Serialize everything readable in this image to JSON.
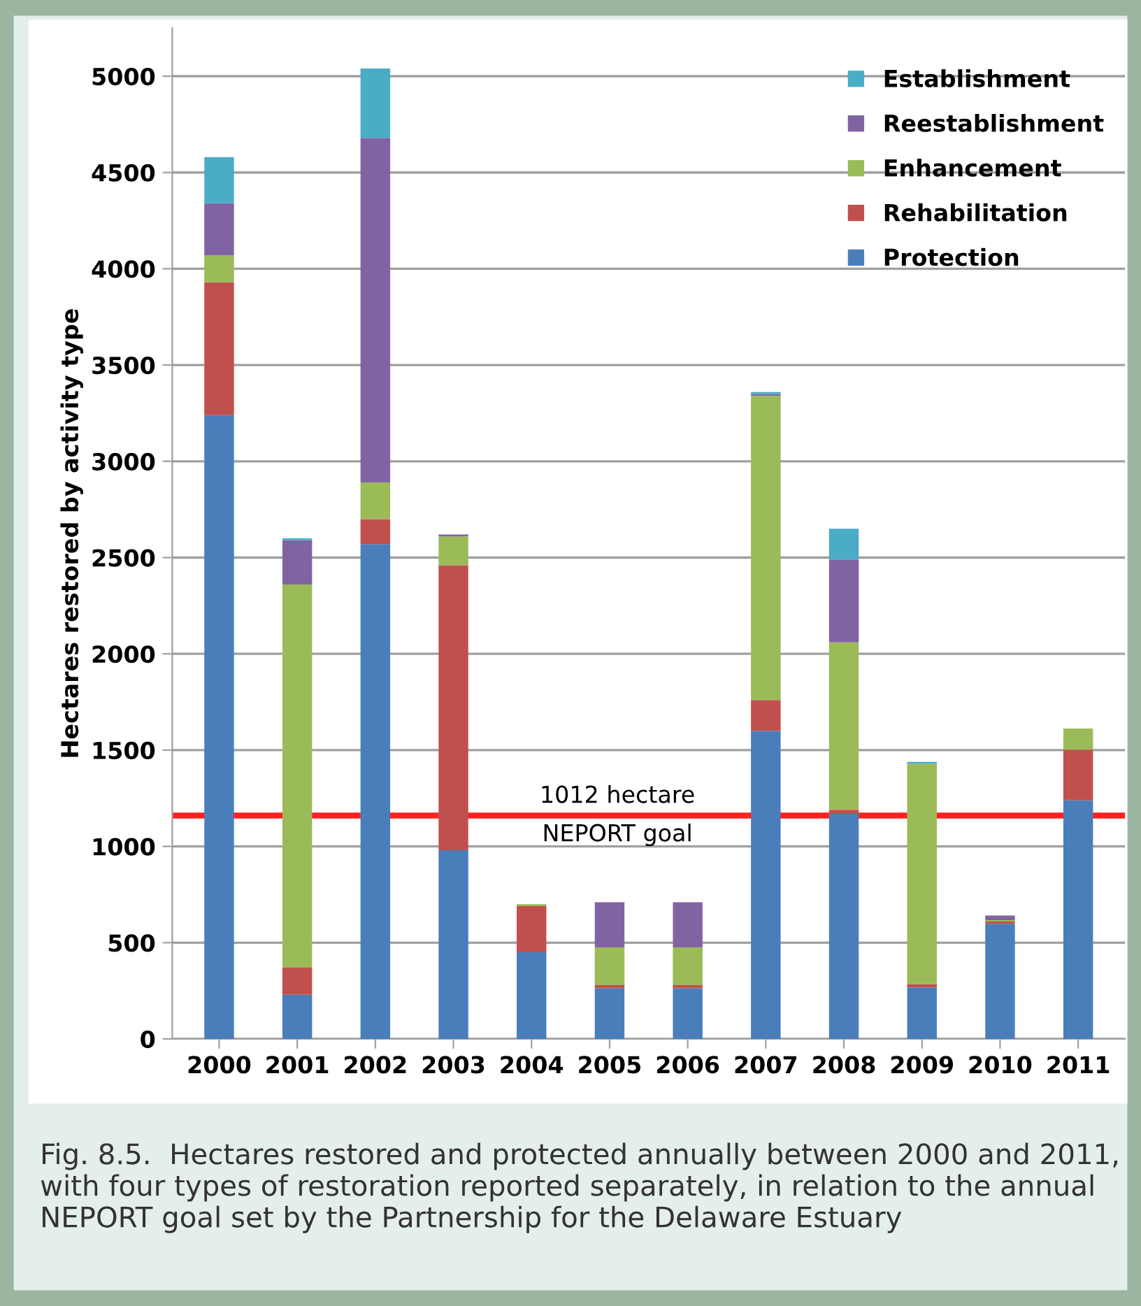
{
  "chart_data": {
    "type": "bar",
    "stacked": true,
    "ylabel": "Hectares restored by activity type",
    "categories": [
      "2000",
      "2001",
      "2002",
      "2003",
      "2004",
      "2005",
      "2006",
      "2007",
      "2008",
      "2009",
      "2010",
      "2011"
    ],
    "series": [
      {
        "name": "Protection",
        "color": "#4a7ebb",
        "values": [
          3240,
          230,
          2570,
          980,
          450,
          263,
          263,
          1600,
          1170,
          268,
          598,
          1239
        ]
      },
      {
        "name": "Rehabilitation",
        "color": "#c0504d",
        "values": [
          690,
          140,
          130,
          1480,
          240,
          17,
          17,
          160,
          20,
          17,
          12,
          263
        ]
      },
      {
        "name": "Enhancement",
        "color": "#9bbb59",
        "values": [
          140,
          1990,
          190,
          150,
          10,
          196,
          196,
          1580,
          870,
          1144,
          7,
          110
        ]
      },
      {
        "name": "Reestablishment",
        "color": "#8064a2",
        "values": [
          270,
          230,
          1790,
          10,
          0,
          234,
          234,
          10,
          430,
          0,
          24,
          0
        ]
      },
      {
        "name": "Establishment",
        "color": "#4bacc6",
        "values": [
          240,
          10,
          360,
          0,
          0,
          0,
          0,
          10,
          160,
          10,
          0,
          0
        ]
      }
    ],
    "ylim": [
      0,
      5250
    ],
    "yticks": [
      0,
      500,
      1000,
      1500,
      2000,
      2500,
      3000,
      3500,
      4000,
      4500,
      5000
    ],
    "grid": "y",
    "legend": "top right",
    "ref_lines": [
      {
        "axis": "y",
        "value": 1160,
        "label": "1012 hectare\nNEPORT goal",
        "color": "#ff2020"
      }
    ],
    "annotations": [
      "Fig. 8.5.  Hectares restored and protected annually between 2000 and 2011, with four types of restoration reported separately, in relation to the annual NEPORT goal set by the Partnership for the Delaware Estuary"
    ]
  }
}
